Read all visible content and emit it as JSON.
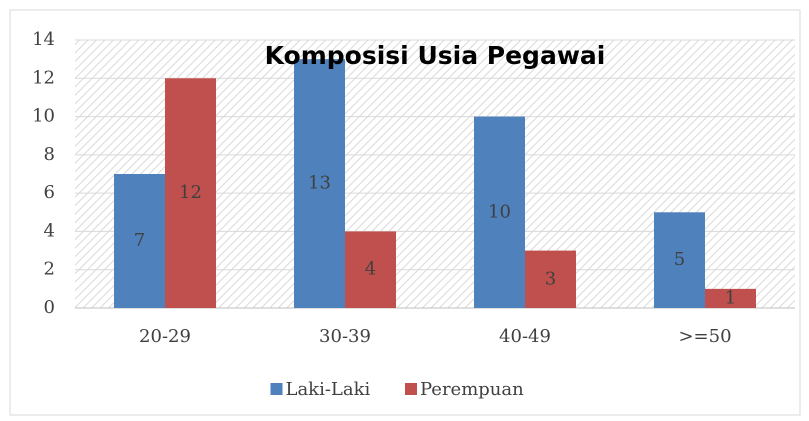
{
  "chart_data": {
    "type": "bar",
    "title": "Komposisi Usia Pegawai",
    "categories": [
      "20-29",
      "30-39",
      "40-49",
      ">=50"
    ],
    "series": [
      {
        "name": "Laki-Laki",
        "color": "#4f81bd",
        "values": [
          7,
          13,
          10,
          5
        ]
      },
      {
        "name": "Perempuan",
        "color": "#c0504d",
        "values": [
          12,
          4,
          3,
          1
        ]
      }
    ],
    "ylim": [
      0,
      14
    ],
    "yticks": [
      0,
      2,
      4,
      6,
      8,
      10,
      12,
      14
    ],
    "grid": true,
    "legend": "bottom"
  }
}
